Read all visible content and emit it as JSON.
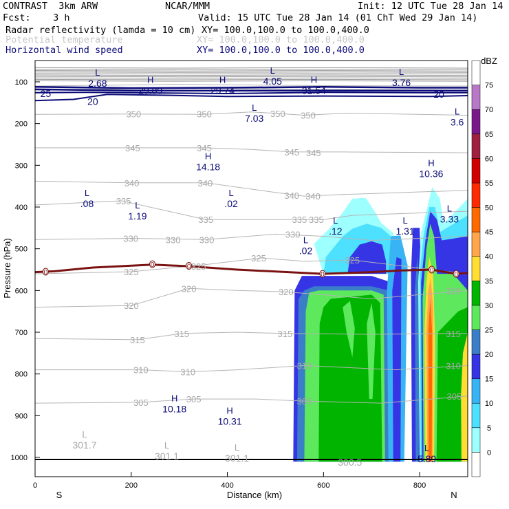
{
  "header": {
    "line1_left": "CONTRAST  3km ARW",
    "line1_mid": "NCAR/MMM",
    "line1_right": "Init: 12 UTC Tue 28 Jan 14",
    "line2_left": "Fcst:    3 h",
    "line2_right": "Valid: 15 UTC Tue 28 Jan 14 (01 ChT Wed 29 Jan 14)",
    "fields": [
      {
        "name": "Radar reflectivity (lamda = 10 cm)",
        "xy": "XY= 100.0,100.0 to 100.0,400.0",
        "color": "#000000"
      },
      {
        "name": "Potential temperature",
        "xy": "XY= 100.0,100.0 to 100.0,400.0",
        "color": "#c8c8c8"
      },
      {
        "name": "Horizontal wind speed",
        "xy": "XY= 100.0,100.0 to 100.0,400.0",
        "color": "#0a0a78"
      }
    ]
  },
  "chart_data": {
    "type": "cross-section contour",
    "xlabel": "Distance (km)",
    "ylabel": "Pressure (hPa)",
    "xlim": [
      0,
      900
    ],
    "ylim_hpa": [
      1050,
      60
    ],
    "x_ticks": [
      0,
      200,
      400,
      600,
      800
    ],
    "y_ticks": [
      100,
      200,
      300,
      400,
      500,
      600,
      700,
      800,
      900,
      1000
    ],
    "x_end_labels": {
      "left": "S",
      "right": "N"
    },
    "colorbar": {
      "unit": "dBZ",
      "levels": [
        0,
        5,
        10,
        15,
        20,
        25,
        30,
        35,
        40,
        45,
        50,
        55,
        60,
        65,
        70,
        75
      ],
      "colors": [
        "#ffffff",
        "#9effff",
        "#4ee1ff",
        "#38b4f5",
        "#3535e6",
        "#3a7ec8",
        "#5de85d",
        "#00b400",
        "#ffdd33",
        "#ffa64d",
        "#ff6a00",
        "#ff2a00",
        "#d20000",
        "#a02040",
        "#7a1a8a",
        "#b878c8",
        "#ffffff"
      ]
    },
    "theta_labels": [
      {
        "v": "350",
        "x": 205,
        "p": 177
      },
      {
        "v": "350",
        "x": 352,
        "p": 177
      },
      {
        "v": "350",
        "x": 505,
        "p": 176
      },
      {
        "v": "350",
        "x": 568,
        "p": 180
      },
      {
        "v": "345",
        "x": 203,
        "p": 258
      },
      {
        "v": "345",
        "x": 352,
        "p": 258
      },
      {
        "v": "345",
        "x": 534,
        "p": 268
      },
      {
        "v": "345",
        "x": 579,
        "p": 270
      },
      {
        "v": "340",
        "x": 201,
        "p": 342
      },
      {
        "v": "340",
        "x": 354,
        "p": 342
      },
      {
        "v": "340",
        "x": 534,
        "p": 372
      },
      {
        "v": "340",
        "x": 578,
        "p": 374
      },
      {
        "v": "335",
        "x": 184,
        "p": 385
      },
      {
        "v": "335",
        "x": 355,
        "p": 430
      },
      {
        "v": "335",
        "x": 550,
        "p": 430
      },
      {
        "v": "335",
        "x": 585,
        "p": 430
      },
      {
        "v": "330",
        "x": 199,
        "p": 475
      },
      {
        "v": "330",
        "x": 287,
        "p": 478
      },
      {
        "v": "330",
        "x": 357,
        "p": 478
      },
      {
        "v": "330",
        "x": 536,
        "p": 465
      },
      {
        "v": "325",
        "x": 200,
        "p": 555
      },
      {
        "v": "325",
        "x": 340,
        "p": 542
      },
      {
        "v": "325",
        "x": 465,
        "p": 522
      },
      {
        "v": "325",
        "x": 660,
        "p": 527
      },
      {
        "v": "320",
        "x": 200,
        "p": 636
      },
      {
        "v": "320",
        "x": 320,
        "p": 595
      },
      {
        "v": "320",
        "x": 522,
        "p": 603
      },
      {
        "v": "320",
        "x": 870,
        "p": 600
      },
      {
        "v": "315",
        "x": 213,
        "p": 718
      },
      {
        "v": "315",
        "x": 305,
        "p": 703
      },
      {
        "v": "315",
        "x": 520,
        "p": 703
      },
      {
        "v": "315",
        "x": 870,
        "p": 703
      },
      {
        "v": "310",
        "x": 220,
        "p": 790
      },
      {
        "v": "310",
        "x": 318,
        "p": 795
      },
      {
        "v": "310",
        "x": 560,
        "p": 780
      },
      {
        "v": "310",
        "x": 870,
        "p": 780
      },
      {
        "v": "305",
        "x": 220,
        "p": 868
      },
      {
        "v": "305",
        "x": 330,
        "p": 860
      },
      {
        "v": "305",
        "x": 560,
        "p": 865
      },
      {
        "v": "305",
        "x": 872,
        "p": 853
      }
    ],
    "wind_contour_labels": [
      {
        "v": "25",
        "x": 22,
        "p": 128
      },
      {
        "v": "20",
        "x": 120,
        "p": 147
      },
      {
        "v": "20",
        "x": 840,
        "p": 130
      }
    ],
    "wind_extrema": [
      {
        "t": "L",
        "v": "2.68",
        "x": 130,
        "p": 102
      },
      {
        "t": "H",
        "v": "29.89",
        "x": 240,
        "p": 119
      },
      {
        "t": "H",
        "v": "29.74",
        "x": 390,
        "p": 119
      },
      {
        "t": "L",
        "v": "4.05",
        "x": 494,
        "p": 97
      },
      {
        "t": "H",
        "v": "31.54",
        "x": 580,
        "p": 119
      },
      {
        "t": "L",
        "v": "3.76",
        "x": 762,
        "p": 100
      },
      {
        "t": "L",
        "v": "7.03",
        "x": 456,
        "p": 186
      },
      {
        "t": "L",
        "v": "3.6",
        "x": 878,
        "p": 195
      },
      {
        "t": "H",
        "v": "14.18",
        "x": 360,
        "p": 302
      },
      {
        "t": "H",
        "v": "10.36",
        "x": 824,
        "p": 318
      },
      {
        "t": "L",
        "v": ".08",
        "x": 108,
        "p": 390
      },
      {
        "t": "L",
        "v": "1.19",
        "x": 213,
        "p": 420
      },
      {
        "t": "L",
        "v": ".02",
        "x": 408,
        "p": 390
      },
      {
        "t": "L",
        "v": ".12",
        "x": 625,
        "p": 456
      },
      {
        "t": "L",
        "v": "1.31",
        "x": 770,
        "p": 456
      },
      {
        "t": "L",
        "v": "3.33",
        "x": 862,
        "p": 427
      },
      {
        "t": "L",
        "v": ".02",
        "x": 563,
        "p": 503
      },
      {
        "t": "H",
        "v": "10.18",
        "x": 290,
        "p": 882
      },
      {
        "t": "H",
        "v": "10.31",
        "x": 405,
        "p": 912
      },
      {
        "t": "L",
        "v": "5.89",
        "x": 815,
        "p": 1002
      }
    ],
    "theta_extrema": [
      {
        "t": "L",
        "v": "301.7",
        "x": 103,
        "p": 969
      },
      {
        "t": "L",
        "v": "301.1",
        "x": 274,
        "p": 995
      },
      {
        "t": "L",
        "v": "301.1",
        "x": 420,
        "p": 1000
      },
      {
        "t": "",
        "v": "300.5",
        "x": 655,
        "p": 1010
      }
    ],
    "freezing_line_labels": [
      {
        "v": "0",
        "x": 22,
        "p": 555
      },
      {
        "v": "0",
        "x": 244,
        "p": 537
      },
      {
        "v": "0",
        "x": 320,
        "p": 541
      },
      {
        "v": "0",
        "x": 598,
        "p": 560
      },
      {
        "v": "0",
        "x": 825,
        "p": 550
      },
      {
        "v": "0",
        "x": 876,
        "p": 560
      }
    ]
  }
}
